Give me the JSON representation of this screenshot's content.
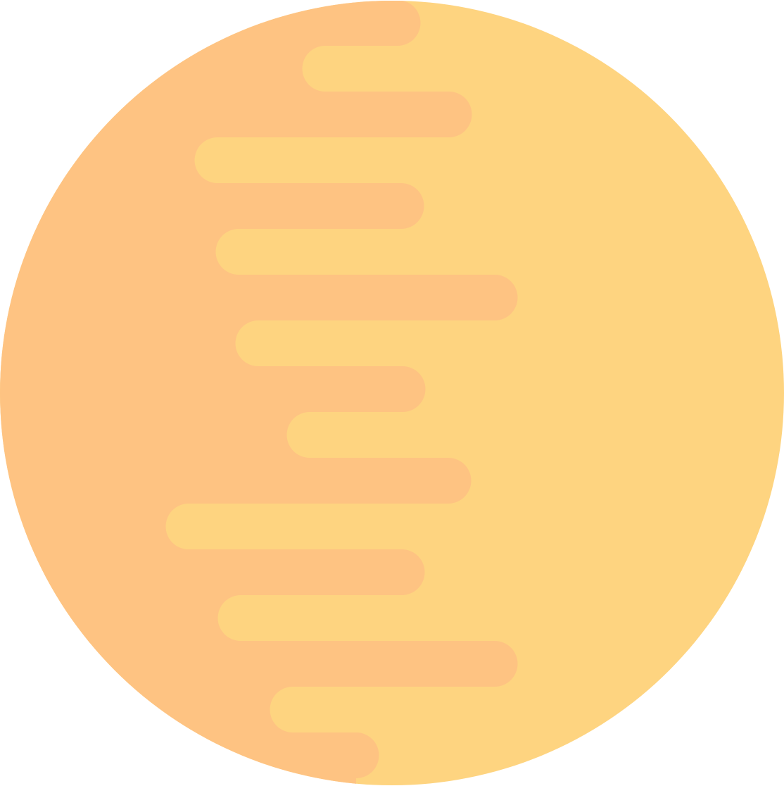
{
  "graphic": {
    "name": "striped-circle-emblem",
    "colors": {
      "background": "#ffffff",
      "light": "#fed480",
      "dark": "#fec382"
    }
  }
}
